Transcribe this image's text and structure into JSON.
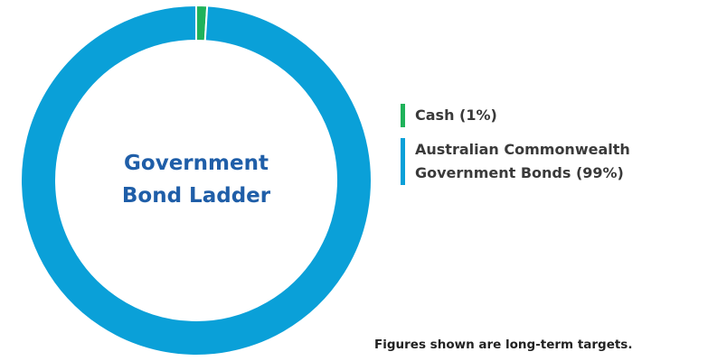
{
  "chart_data": {
    "type": "donut",
    "title": "Government Bond Ladder",
    "categories": [
      "Cash (1%)",
      "Australian Commonwealth Government Bonds (99%)"
    ],
    "values": [
      1,
      99
    ],
    "colors": [
      "#1fb25a",
      "#0aa0d8"
    ],
    "note": "Figures shown are long-term targets."
  }
}
